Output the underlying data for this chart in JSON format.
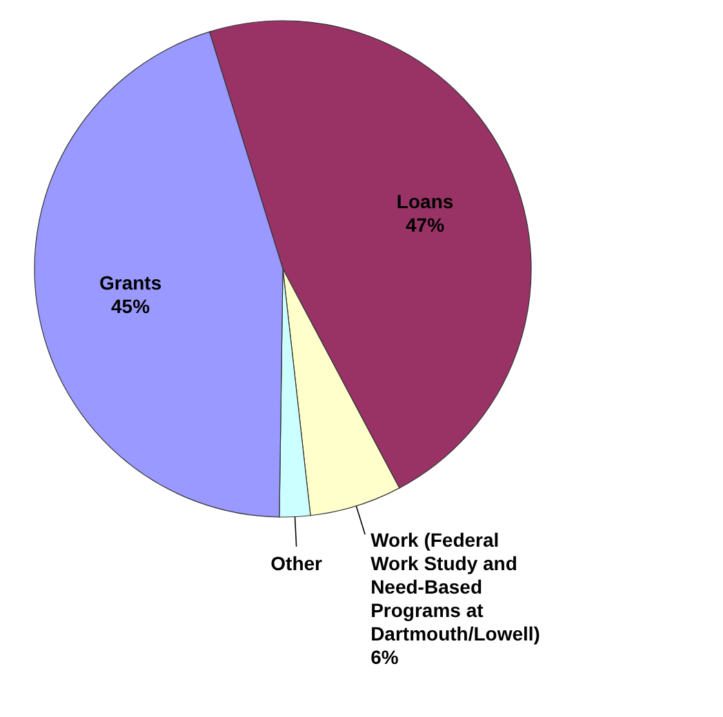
{
  "chart_data": {
    "type": "pie",
    "categories": [
      "Loans",
      "Work (Federal Work Study and Need-Based Programs at Dartmouth/Lowell)",
      "Other",
      "Grants"
    ],
    "values": [
      47,
      6,
      2,
      45
    ],
    "colors": [
      "#993366",
      "#ffffcc",
      "#ccffff",
      "#9999ff"
    ],
    "value_labels": [
      "47%",
      "6%",
      null,
      "45%"
    ],
    "legend": false
  }
}
